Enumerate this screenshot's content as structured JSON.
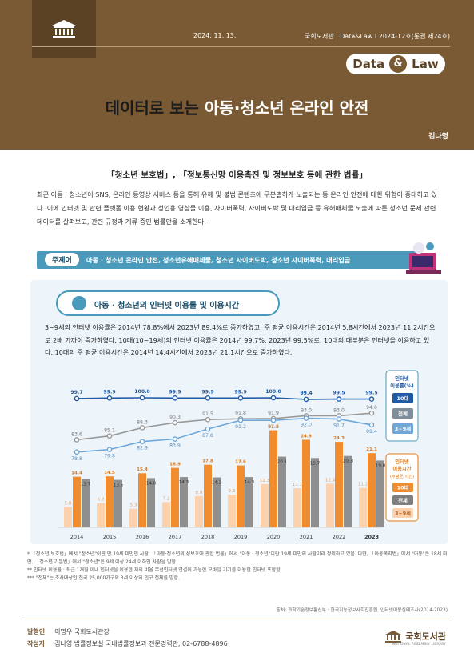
{
  "header": {
    "date": "2024. 11. 13.",
    "publication": "국회도서관 Ι Data&Law Ι 2024-12호(통권 제24호)",
    "badge_data": "Data",
    "badge_amp": "&",
    "badge_law": "Law",
    "title_prefix": "데이터로 보는 ",
    "title_highlight": "아동·청소년 온라인 안전",
    "author": "김나영"
  },
  "law_line": "「청소년 보호법」, 「정보통신망 이용촉진 및 정보보호 등에 관한 법률」",
  "intro_text": "최근 아동 · 청소년이 SNS, 온라인 동영상 서비스 등을 통해 유해 및 불법 콘텐츠에 무분별하게 노출되는 등 온라인 안전에 대한 위험이 증대하고 있다. 이에 인터넷 및 관련 플랫폼 이용 현황과 성인용 영상물 이용, 사이버폭력, 사이버도박 및 대리입금 등 유해매체물 노출에 따른 청소년 문제 관련 데이터를 살펴보고, 관련 규정과 계류 중인 법률안을 소개한다.",
  "theme": {
    "label": "주제어",
    "keywords": "아동 · 청소년 온라인 안전, 청소년유해매체물, 청소년 사이버도박, 청소년 사이버폭력, 대리입금"
  },
  "chart_title": "아동 · 청소년의 인터넷 이용률 및 이용시간",
  "chart_desc": "3~9세의 인터넷 이용률은 2014년 78.8%에서 2023년 89.4%로 증가하였고, 주 평균 이용시간은 2014년 5.8시간에서 2023년 11.2시간으로 2배 가까이 증가하였다. 10대(10~19세)의 인터넷 이용률은 2014년 99.7%, 2023년 99.5%로, 10대의 대부분은 인터넷을 이용하고 있다. 10대의 주 평균 이용시간은 2014년 14.4시간에서 2023년 21.1시간으로 증가하였다.",
  "chart_data": [
    {
      "type": "line",
      "x": [
        "2014",
        "2015",
        "2016",
        "2017",
        "2018",
        "2019",
        "2020",
        "2021",
        "2022",
        "2023"
      ],
      "legend_title": "인터넷 이용률(%)",
      "series": [
        {
          "name": "10대",
          "values": [
            99.7,
            99.9,
            100.0,
            99.9,
            99.9,
            99.9,
            100.0,
            99.4,
            99.5,
            99.5
          ],
          "color": "#1f5aa6"
        },
        {
          "name": "전체",
          "values": [
            83.6,
            85.1,
            88.3,
            90.3,
            91.5,
            91.8,
            91.9,
            93.0,
            93.0,
            94.0
          ],
          "color": "#999999"
        },
        {
          "name": "3~9세",
          "values": [
            78.8,
            79.8,
            82.9,
            83.9,
            87.8,
            91.2,
            91.2,
            92.0,
            91.7,
            89.4
          ],
          "color": "#6fa8d8"
        }
      ],
      "legend": "right"
    },
    {
      "type": "bar",
      "categories": [
        "2014",
        "2015",
        "2016",
        "2017",
        "2018",
        "2019",
        "2020",
        "2021",
        "2022",
        "2023"
      ],
      "legend_title": "인터넷 이용시간(주평균/시간)",
      "series": [
        {
          "name": "10대",
          "values": [
            14.4,
            14.5,
            15.4,
            16.9,
            17.8,
            17.6,
            27.6,
            24.9,
            24.3,
            21.1
          ],
          "color": "#f08c2e"
        },
        {
          "name": "전체",
          "values": [
            13.7,
            13.5,
            14.0,
            14.3,
            14.2,
            14.3,
            20.1,
            19.7,
            20.3,
            19.0
          ],
          "color": "#8f8f8f"
        },
        {
          "name": "3~9세",
          "values": [
            5.8,
            6.9,
            5.3,
            7.2,
            8.9,
            9.3,
            12.3,
            11.1,
            12.4,
            11.2
          ],
          "color": "#fbd2ad"
        }
      ],
      "legend": "right"
    }
  ],
  "footnotes": [
    "* 「청소년 보호법」에서 \"청소년\"이란 만 19세 미만인 사람, 「아동·청소년의 성보호에 관한 법률」에서 \"아동 · 청소년\"이란 19세 미만의 사람이라 정의하고 있음. 다만, 「아동복지법」에서 \"아동\"은 18세 미만, 「청소년 기본법」에서 \"청소년\"은 9세 이상 24세 이하인 사람을 말함.",
    "** 인터넷 이용률 : 최근 1개월 이내 인터넷을 이용한 자의 비율 무선인터넷 연결이 가능한 모바일 기기를 이용한 인터넷 포함함.",
    "*** \"전체\"는 조사대상인 전국 25,000가구의 3세 이상의 인구 전체를 말함."
  ],
  "source": "출처: 과학기술정보통신부 · 한국지능정보사회진흥원, 인터넷이용실태조사(2014-2023)",
  "publisher": {
    "label": "발행인",
    "value": "이명우 국회도서관장"
  },
  "writer": {
    "label": "작성자",
    "value": "김나영 법률정보실 국내법률정보과 전문경력관, 02-6788-4896"
  },
  "org_name": "국회도서관",
  "org_sub": "NATIONAL ASSEMBLY LIBRARY"
}
